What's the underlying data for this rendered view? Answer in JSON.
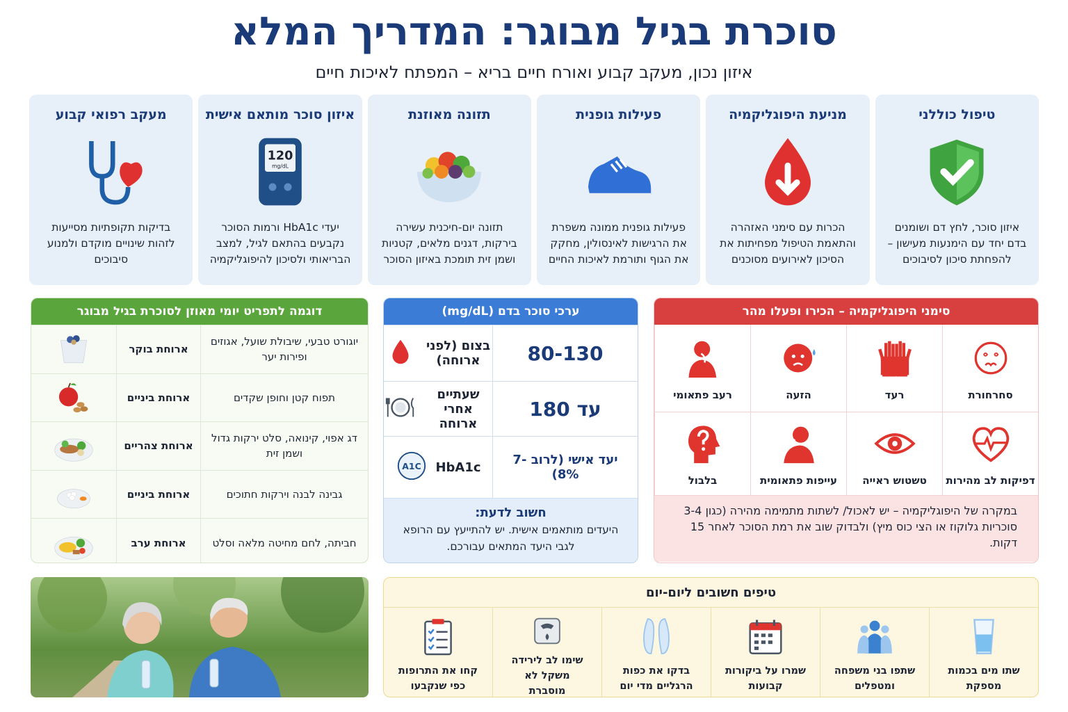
{
  "header": {
    "title": "סוכרת בגיל מבוגר: המדריך המלא",
    "subtitle": "איזון נכון, מעקב קבוע ואורח חיים בריא – המפתח לאיכות חיים"
  },
  "cards": [
    {
      "title": "טיפול כוללני",
      "text": "איזון סוכר, לחץ דם ושומנים בדם יחד עם הימנעות מעישון – להפחתת סיכון לסיבוכים"
    },
    {
      "title": "מניעת היפוגליקמיה",
      "text": "הכרות עם סימני האזהרה והתאמת הטיפול מפחיתות את הסיכון לאירועים מסוכנים"
    },
    {
      "title": "פעילות גופנית",
      "text": "פעילות גופנית ממונה משפרת את הרגישות לאינסולין, מחקק את הגוף ותורמת לאיכות החיים"
    },
    {
      "title": "תזונה מאוזנת",
      "text": "תזונה יום-חיכנית עשירה בירקות, דגנים מלאים, קטניות ושמן זית תומכת באיזון הסוכר"
    },
    {
      "title": "איזון סוכר מותאם אישית",
      "text": "יעדי HbA1c ורמות הסוכר נקבעים בהתאם לגיל, למצב הבריאותי ולסיכון להיפוגליקמיה"
    },
    {
      "title": "מעקב רפואי קבוע",
      "text": "בדיקות תקופתיות מסייעות לזהות שינויים מוקדם ולמנוע סיבוכים"
    }
  ],
  "meter": {
    "reading": "120",
    "unit": "mg/dL"
  },
  "menu": {
    "title": "דוגמה לתפריט יומי מאוזן לסוכרת בגיל מבוגר",
    "rows": [
      {
        "meal": "ארוחת בוקר",
        "food": "יוגורט טבעי, שיבולת שועל, אגוזים ופירות יער"
      },
      {
        "meal": "ארוחת ביניים",
        "food": "תפוח קטן וחופן שקדים"
      },
      {
        "meal": "ארוחת צהריים",
        "food": "דג אפוי, קינואה, סלט ירקות גדול ושמן זית"
      },
      {
        "meal": "ארוחת ביניים",
        "food": "גבינה לבנה וירקות חתוכים"
      },
      {
        "meal": "ארוחת ערב",
        "food": "חביתה, לחם מחיטה מלאה וסלט"
      }
    ]
  },
  "sugar": {
    "title": "ערכי סוכר בדם (mg/dL)",
    "rows": [
      {
        "value": "80-130",
        "label": "בצום (לפני ארוחה)"
      },
      {
        "value": "עד 180",
        "label": "שעתיים אחרי ארוחה"
      },
      {
        "value": "יעד אישי (לרוב 7-8%)",
        "label": "HbA1c"
      }
    ],
    "a1c_icon": "A1C",
    "note_title": "חשוב לדעת:",
    "note": "היעדים מותאמים אישית. יש להתייעץ עם הרופא לגבי היעד המתאים עבורכם."
  },
  "hypo": {
    "title": "סימני היפוגליקמיה – הכירו ופעלו מהר",
    "symptoms": [
      "סחרחורת",
      "רעד",
      "הזעה",
      "רעב פתאומי",
      "דפיקות לב מהירות",
      "טשטוש ראייה",
      "עייפות פתאומית",
      "בלבול"
    ],
    "note": "במקרה של היפוגליקמיה – יש לאכול/ לשתות מתמימה מהירה (כגון 3-4 סוכריות גלוקוז או הצי כוס מיץ) ולבדוק שוב את רמת הסוכר לאחר 15 דקות."
  },
  "tips": {
    "title": "טיפים חשובים ליום-יום",
    "items": [
      "שתו מים בכמות מספקת",
      "שתפו בני משפחה ומטפלים",
      "שמרו על ביקורות קבועות",
      "בדקו את כפות הרגליים מדי יום",
      "שימו לב לירידה משקל לא מוסברת",
      "קחו את התרופות כפי שנקבעו"
    ]
  }
}
